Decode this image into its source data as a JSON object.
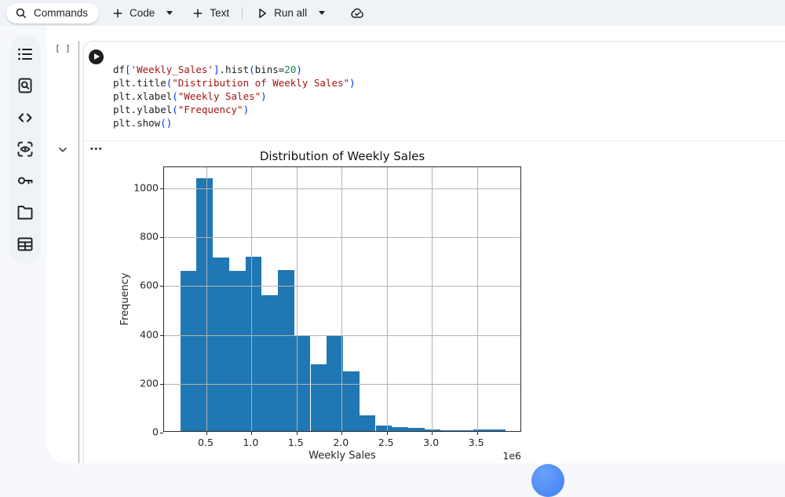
{
  "colors": {
    "toolbar_bg": "#eff3f8",
    "page_bg": "#f6f8fc",
    "panel_bg": "#ffffff",
    "bar_color": "#1f77b4",
    "grid_color": "#b3b3b3",
    "fab_blue": "#3f7ef4"
  },
  "toolbar": {
    "commands_label": "Commands",
    "add_code_label": "Code",
    "add_text_label": "Text",
    "run_all_label": "Run all",
    "icons": [
      "search-icon",
      "plus-icon",
      "chevron-down-icon",
      "plus-icon",
      "run-outline-icon",
      "chevron-down-icon",
      "cloud-saved-icon"
    ]
  },
  "sidebar": {
    "icons": [
      "table-of-contents",
      "find-and-replace",
      "code-snippets",
      "variable-inspector",
      "secrets-key",
      "files-folder",
      "data-table"
    ]
  },
  "cell": {
    "gutter_label": "[ ]",
    "output_menu": "•••",
    "code": [
      [
        [
          "p",
          "df"
        ],
        [
          "b",
          "["
        ],
        [
          "s",
          "'Weekly_Sales'"
        ],
        [
          "b",
          "]"
        ],
        [
          "p",
          ".hist"
        ],
        [
          "b",
          "("
        ],
        [
          "p",
          "bins="
        ],
        [
          "n",
          "20"
        ],
        [
          "b",
          ")"
        ]
      ],
      [
        [
          "p",
          "plt.title"
        ],
        [
          "b",
          "("
        ],
        [
          "s",
          "\"Distribution of Weekly Sales\""
        ],
        [
          "b",
          ")"
        ]
      ],
      [
        [
          "p",
          "plt.xlabel"
        ],
        [
          "b",
          "("
        ],
        [
          "s",
          "\"Weekly Sales\""
        ],
        [
          "b",
          ")"
        ]
      ],
      [
        [
          "p",
          "plt.ylabel"
        ],
        [
          "b",
          "("
        ],
        [
          "s",
          "\"Frequency\""
        ],
        [
          "b",
          ")"
        ]
      ],
      [
        [
          "p",
          "plt.show"
        ],
        [
          "b",
          "()"
        ]
      ]
    ]
  },
  "chart_data": {
    "type": "bar",
    "subtype": "histogram",
    "title": "Distribution of Weekly Sales",
    "xlabel": "Weekly Sales",
    "ylabel": "Frequency",
    "x_offset_label": "1e6",
    "bin_start": 210000,
    "bin_width": 180500,
    "values": [
      655,
      1035,
      710,
      655,
      715,
      555,
      660,
      390,
      275,
      390,
      245,
      65,
      22,
      15,
      13,
      8,
      3,
      2,
      5,
      6
    ],
    "xlim": [
      30000,
      4000000
    ],
    "ylim": [
      0,
      1087
    ],
    "xticks": [
      500000,
      1000000,
      1500000,
      2000000,
      2500000,
      3000000,
      3500000
    ],
    "xtick_labels": [
      "0.5",
      "1.0",
      "1.5",
      "2.0",
      "2.5",
      "3.0",
      "3.5"
    ],
    "yticks": [
      0,
      200,
      400,
      600,
      800,
      1000
    ],
    "ytick_labels": [
      "0",
      "200",
      "400",
      "600",
      "800",
      "1000"
    ],
    "grid": true,
    "legend": null
  }
}
